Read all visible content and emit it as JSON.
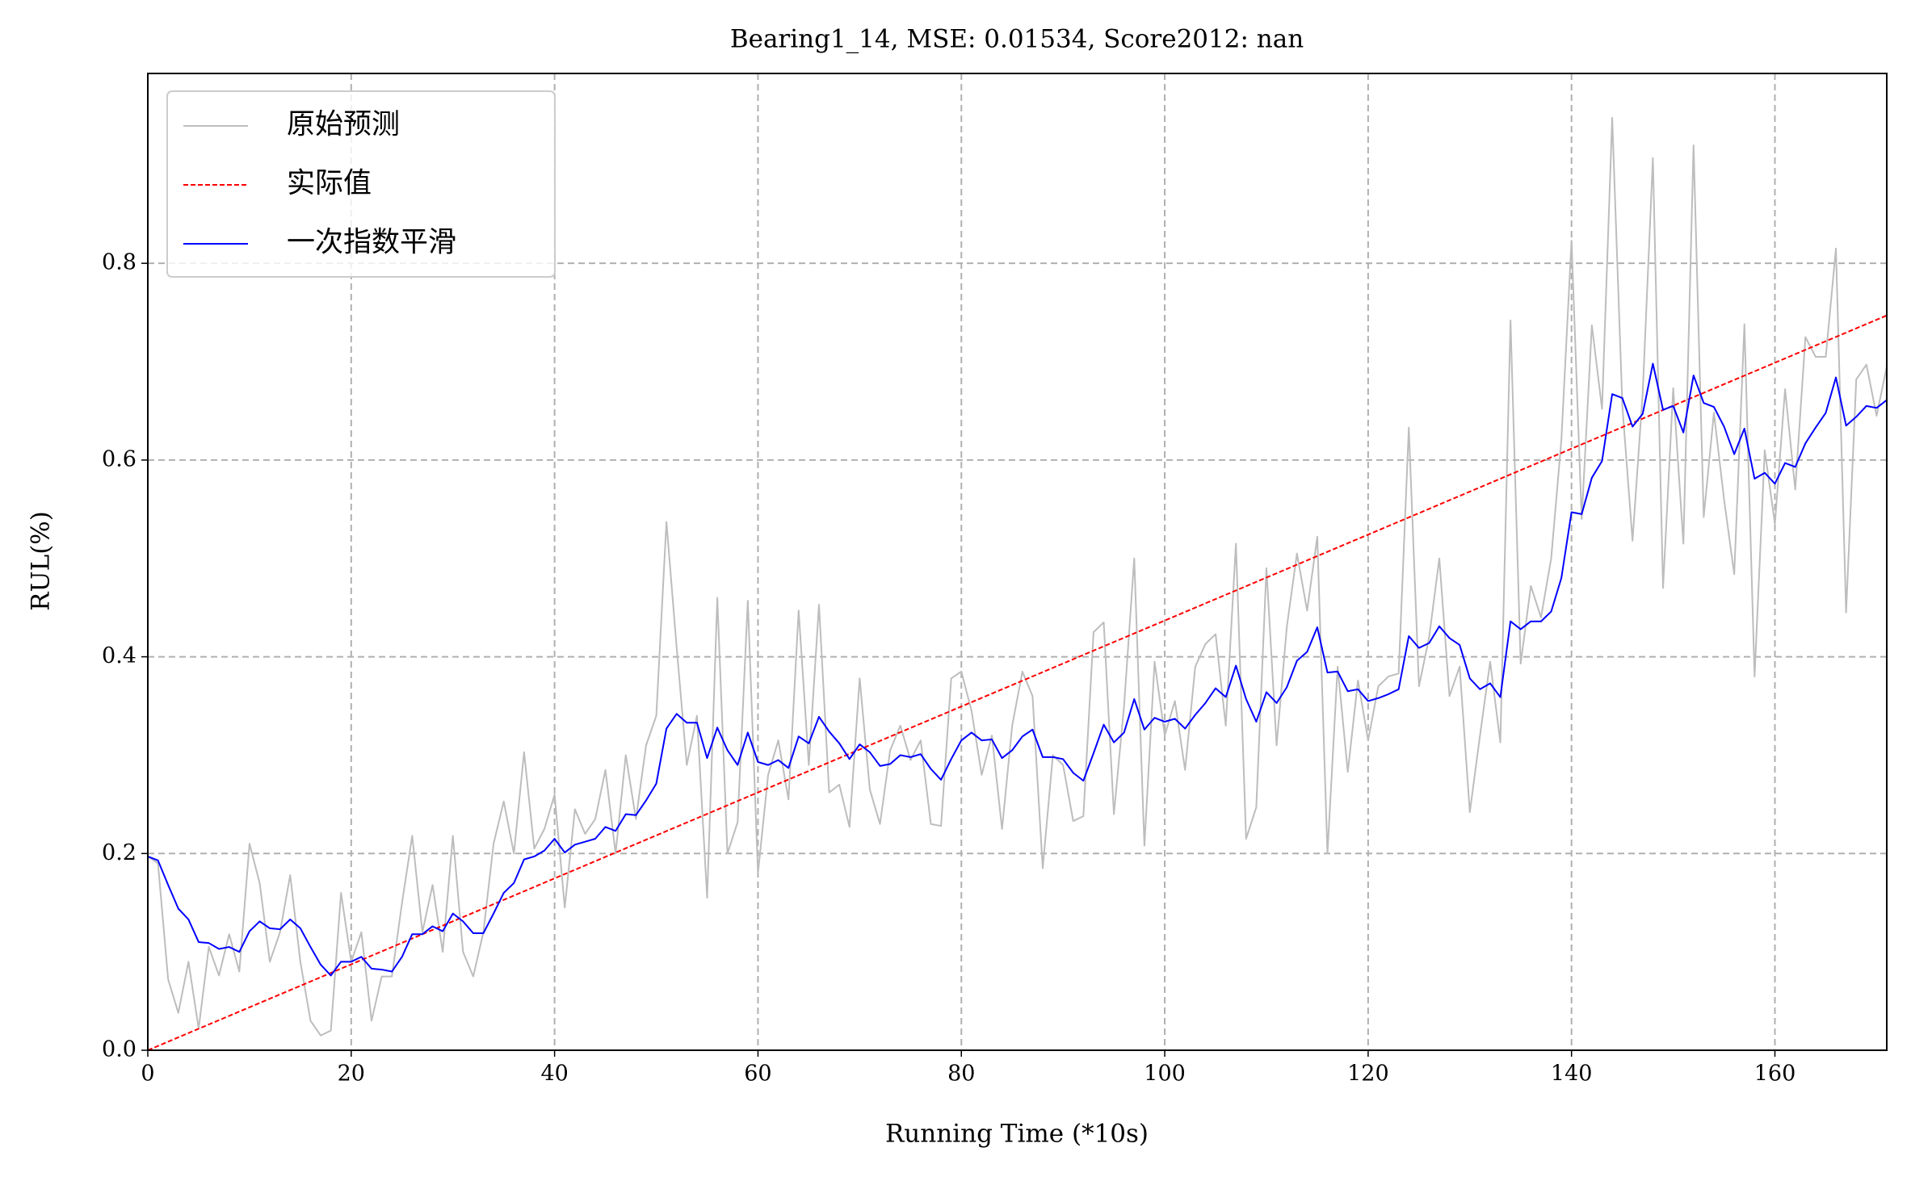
{
  "chart_data": {
    "type": "line",
    "title": "Bearing1_14, MSE: 0.01534, Score2012: nan",
    "xlabel": "Running Time (*10s)",
    "ylabel": "RUL(%)",
    "x": [
      0,
      1,
      2,
      3,
      4,
      5,
      6,
      7,
      8,
      9,
      10,
      11,
      12,
      13,
      14,
      15,
      16,
      17,
      18,
      19,
      20,
      21,
      22,
      23,
      24,
      25,
      26,
      27,
      28,
      29,
      30,
      31,
      32,
      33,
      34,
      35,
      36,
      37,
      38,
      39,
      40,
      41,
      42,
      43,
      44,
      45,
      46,
      47,
      48,
      49,
      50,
      51,
      52,
      53,
      54,
      55,
      56,
      57,
      58,
      59,
      60,
      61,
      62,
      63,
      64,
      65,
      66,
      67,
      68,
      69,
      70,
      71,
      72,
      73,
      74,
      75,
      76,
      77,
      78,
      79,
      80,
      81,
      82,
      83,
      84,
      85,
      86,
      87,
      88,
      89,
      90,
      91,
      92,
      93,
      94,
      95,
      96,
      97,
      98,
      99,
      100,
      101,
      102,
      103,
      104,
      105,
      106,
      107,
      108,
      109,
      110,
      111,
      112,
      113,
      114,
      115,
      116,
      117,
      118,
      119,
      120,
      121,
      122,
      123,
      124,
      125,
      126,
      127,
      128,
      129,
      130,
      131,
      132,
      133,
      134,
      135,
      136,
      137,
      138,
      139,
      140,
      141,
      142,
      143,
      144,
      145,
      146,
      147,
      148,
      149,
      150,
      151,
      152,
      153,
      154,
      155,
      156,
      157,
      158,
      159,
      160,
      161,
      162,
      163,
      164,
      165,
      166,
      167,
      168,
      169,
      170,
      171
    ],
    "series": [
      {
        "name": "原始预测",
        "color": "#bdbdbd",
        "linestyle": "solid",
        "values": [
          0.197,
          0.19,
          0.072,
          0.038,
          0.09,
          0.022,
          0.105,
          0.076,
          0.118,
          0.08,
          0.21,
          0.17,
          0.09,
          0.12,
          0.178,
          0.09,
          0.03,
          0.015,
          0.02,
          0.16,
          0.09,
          0.12,
          0.03,
          0.075,
          0.075,
          0.15,
          0.218,
          0.12,
          0.168,
          0.1,
          0.218,
          0.1,
          0.075,
          0.12,
          0.21,
          0.253,
          0.2,
          0.303,
          0.205,
          0.225,
          0.26,
          0.145,
          0.245,
          0.22,
          0.235,
          0.285,
          0.2,
          0.3,
          0.235,
          0.31,
          0.34,
          0.537,
          0.41,
          0.29,
          0.34,
          0.155,
          0.46,
          0.2,
          0.232,
          0.457,
          0.18,
          0.28,
          0.315,
          0.255,
          0.447,
          0.29,
          0.453,
          0.262,
          0.27,
          0.227,
          0.378,
          0.265,
          0.23,
          0.305,
          0.33,
          0.295,
          0.315,
          0.23,
          0.228,
          0.378,
          0.385,
          0.345,
          0.28,
          0.32,
          0.225,
          0.33,
          0.385,
          0.36,
          0.185,
          0.3,
          0.29,
          0.233,
          0.238,
          0.425,
          0.435,
          0.24,
          0.35,
          0.5,
          0.208,
          0.395,
          0.32,
          0.355,
          0.285,
          0.39,
          0.413,
          0.423,
          0.33,
          0.515,
          0.215,
          0.247,
          0.49,
          0.31,
          0.43,
          0.505,
          0.447,
          0.522,
          0.2,
          0.39,
          0.283,
          0.376,
          0.315,
          0.37,
          0.38,
          0.383,
          0.633,
          0.37,
          0.42,
          0.5,
          0.36,
          0.39,
          0.242,
          0.32,
          0.395,
          0.313,
          0.742,
          0.393,
          0.472,
          0.44,
          0.5,
          0.62,
          0.823,
          0.54,
          0.737,
          0.652,
          0.948,
          0.655,
          0.518,
          0.668,
          0.907,
          0.47,
          0.673,
          0.515,
          0.92,
          0.542,
          0.648,
          0.56,
          0.484,
          0.738,
          0.38,
          0.61,
          0.535,
          0.672,
          0.57,
          0.725,
          0.705,
          0.705,
          0.815,
          0.445,
          0.682,
          0.697,
          0.645,
          0.695
        ]
      },
      {
        "name": "实际值",
        "color": "#ff0000",
        "linestyle": "dashed",
        "x": [
          0,
          171
        ],
        "values": [
          0,
          0.747
        ]
      },
      {
        "name": "一次指数平滑",
        "color": "#0000ff",
        "linestyle": "solid",
        "values": [
          0.197,
          0.193,
          0.168,
          0.144,
          0.133,
          0.11,
          0.109,
          0.103,
          0.105,
          0.1,
          0.121,
          0.131,
          0.124,
          0.123,
          0.133,
          0.124,
          0.105,
          0.087,
          0.076,
          0.09,
          0.09,
          0.095,
          0.083,
          0.082,
          0.08,
          0.095,
          0.118,
          0.118,
          0.126,
          0.121,
          0.139,
          0.131,
          0.119,
          0.119,
          0.139,
          0.16,
          0.17,
          0.194,
          0.197,
          0.203,
          0.215,
          0.201,
          0.209,
          0.212,
          0.215,
          0.227,
          0.223,
          0.24,
          0.239,
          0.254,
          0.271,
          0.327,
          0.342,
          0.333,
          0.333,
          0.297,
          0.328,
          0.305,
          0.29,
          0.323,
          0.293,
          0.29,
          0.295,
          0.287,
          0.319,
          0.312,
          0.339,
          0.324,
          0.312,
          0.296,
          0.311,
          0.303,
          0.289,
          0.291,
          0.3,
          0.298,
          0.301,
          0.286,
          0.275,
          0.296,
          0.315,
          0.323,
          0.315,
          0.316,
          0.297,
          0.305,
          0.319,
          0.326,
          0.298,
          0.298,
          0.296,
          0.282,
          0.274,
          0.302,
          0.331,
          0.313,
          0.323,
          0.357,
          0.326,
          0.338,
          0.334,
          0.337,
          0.327,
          0.341,
          0.353,
          0.368,
          0.359,
          0.391,
          0.357,
          0.334,
          0.364,
          0.353,
          0.369,
          0.396,
          0.405,
          0.43,
          0.384,
          0.385,
          0.365,
          0.367,
          0.355,
          0.358,
          0.362,
          0.367,
          0.421,
          0.409,
          0.414,
          0.431,
          0.419,
          0.412,
          0.378,
          0.367,
          0.373,
          0.359,
          0.436,
          0.428,
          0.436,
          0.436,
          0.446,
          0.48,
          0.547,
          0.545,
          0.582,
          0.599,
          0.667,
          0.663,
          0.634,
          0.647,
          0.698,
          0.651,
          0.655,
          0.628,
          0.686,
          0.658,
          0.654,
          0.634,
          0.606,
          0.632,
          0.581,
          0.587,
          0.576,
          0.597,
          0.593,
          0.617,
          0.633,
          0.648,
          0.684,
          0.635,
          0.644,
          0.655,
          0.653,
          0.661
        ]
      }
    ],
    "xlim": [
      0,
      171
    ],
    "xticks": [
      0,
      20,
      40,
      60,
      80,
      100,
      120,
      140,
      160
    ],
    "ylim": [
      0,
      0.993
    ],
    "yticks": [
      {
        "value": 0,
        "label": "0.0"
      },
      0.2,
      0.4,
      0.6,
      0.8
    ],
    "grid": true,
    "legend": "upper-left"
  }
}
